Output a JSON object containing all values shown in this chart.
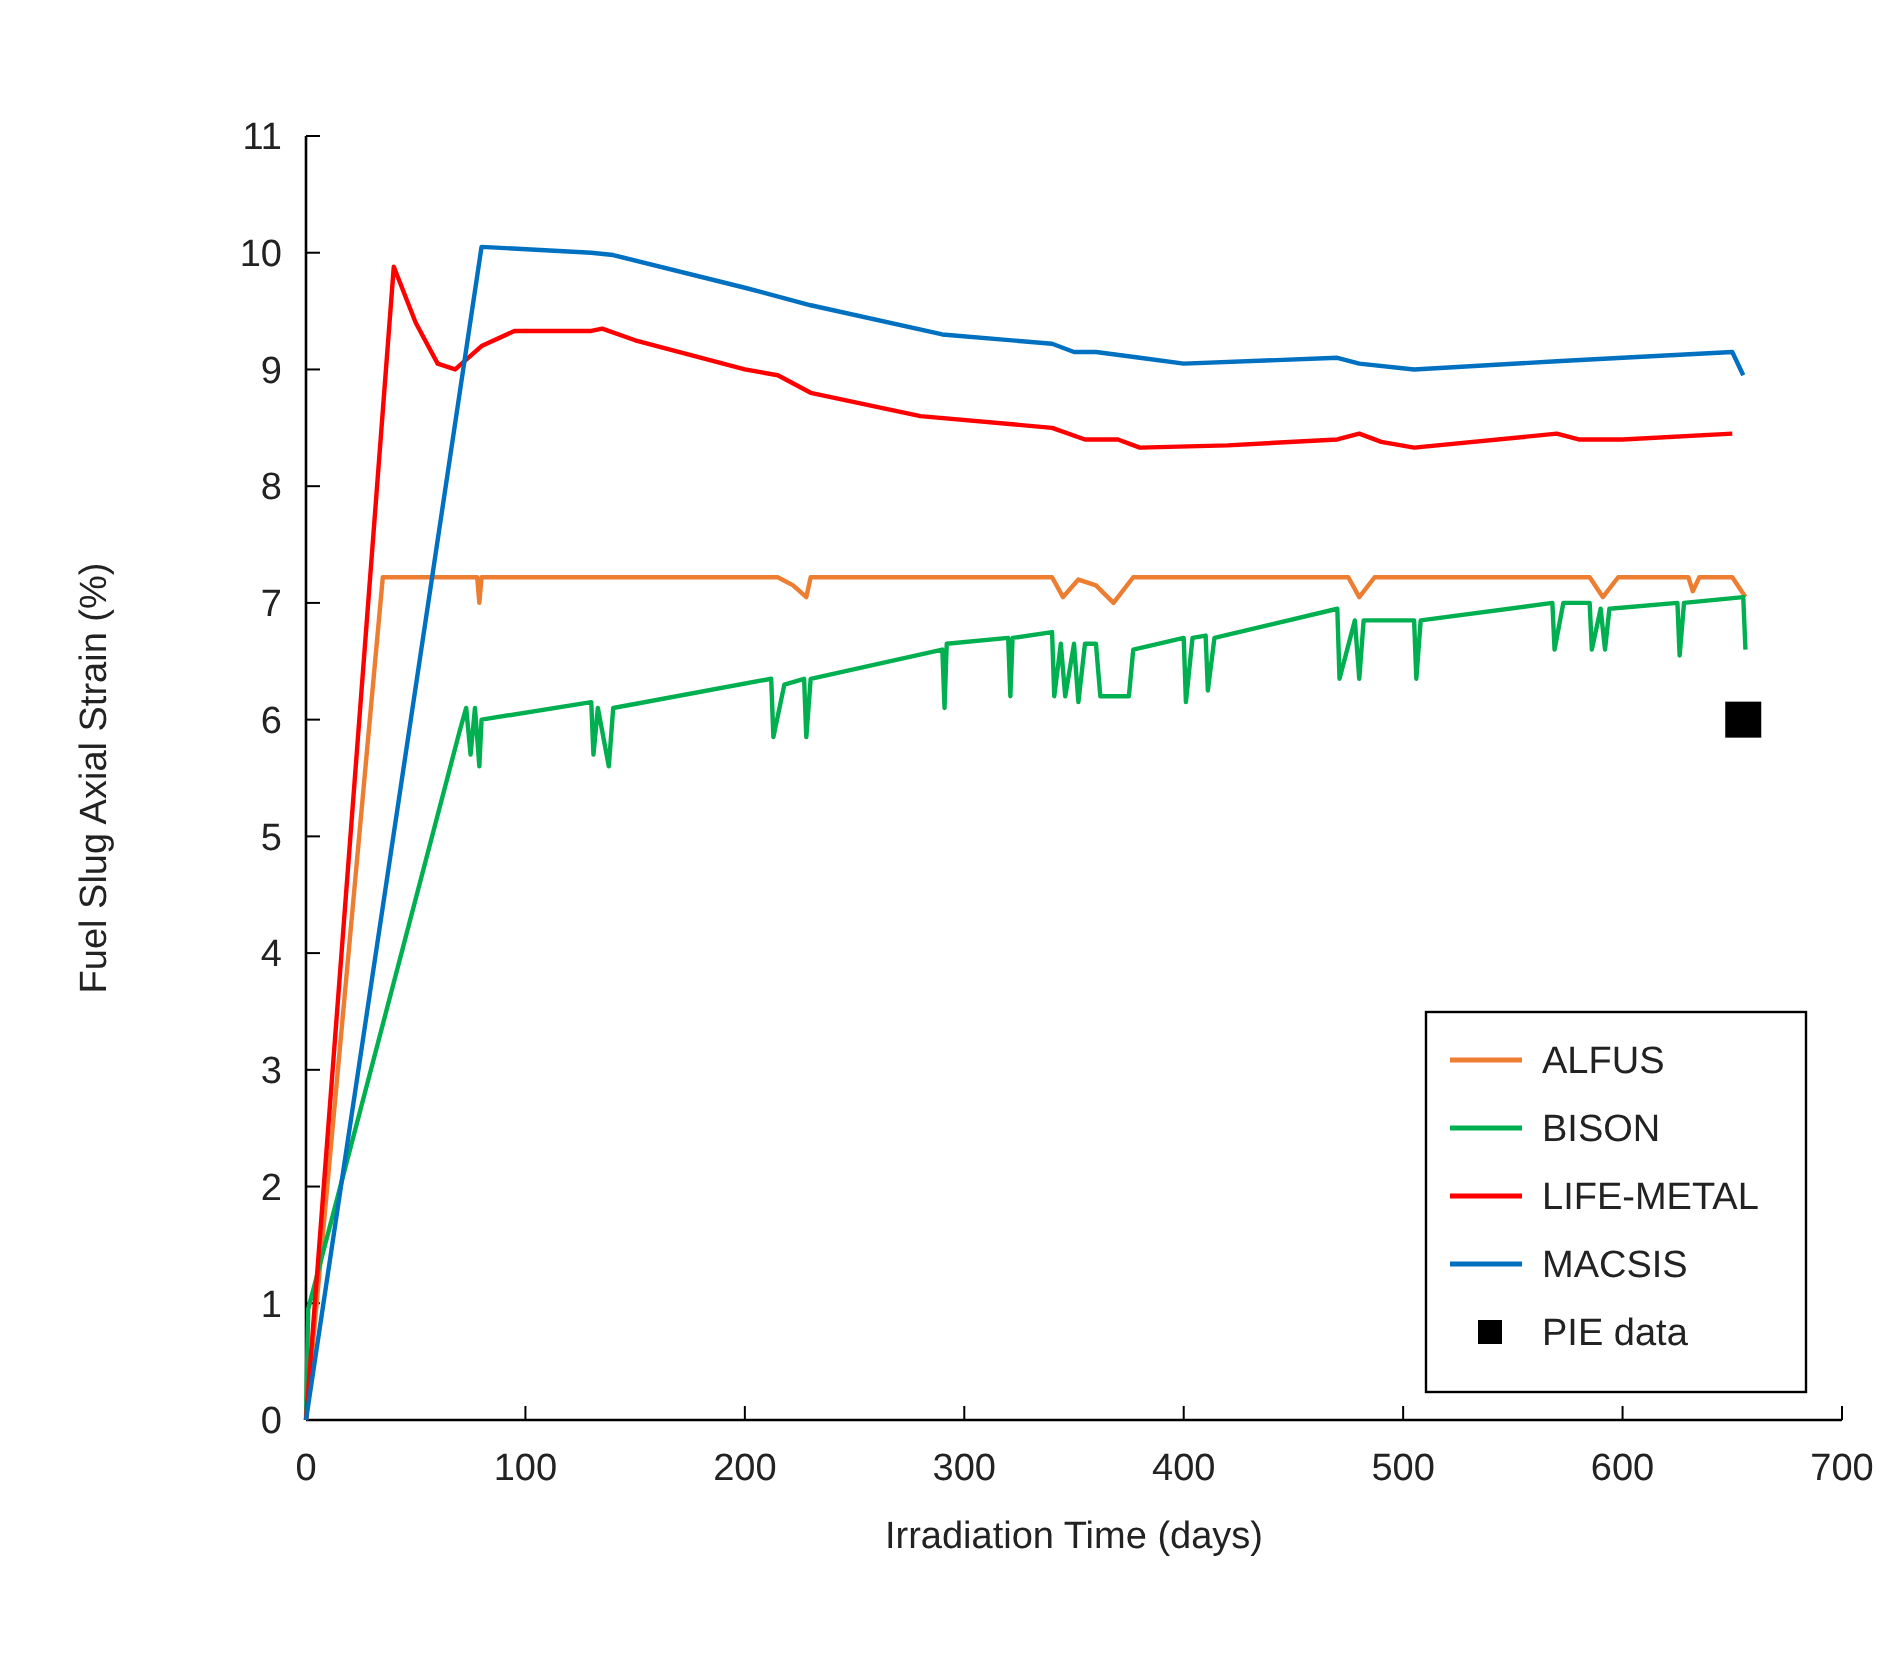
{
  "chart_data": {
    "type": "line",
    "xlabel": "Irradiation Time (days)",
    "ylabel": "Fuel Slug Axial Strain (%)",
    "xlim": [
      0,
      700
    ],
    "xticks": [
      0,
      100,
      200,
      300,
      400,
      500,
      600,
      700
    ],
    "ylim": [
      0,
      11
    ],
    "yticks": [
      0,
      1,
      2,
      3,
      4,
      5,
      6,
      7,
      8,
      9,
      10,
      11
    ],
    "grid": false,
    "legend": "bottom right",
    "series": [
      {
        "name": "ALFUS",
        "color": "#ed7d31",
        "marker": "none",
        "x": [
          0,
          35,
          78,
          79,
          80,
          215,
          222,
          228,
          230,
          340,
          345,
          352,
          360,
          368,
          377,
          475,
          480,
          487,
          585,
          591,
          598,
          630,
          632,
          635,
          650,
          656
        ],
        "values": [
          0,
          7.22,
          7.22,
          7.0,
          7.22,
          7.22,
          7.15,
          7.05,
          7.22,
          7.22,
          7.05,
          7.2,
          7.15,
          7.0,
          7.22,
          7.22,
          7.05,
          7.22,
          7.22,
          7.05,
          7.22,
          7.22,
          7.1,
          7.22,
          7.22,
          7.05
        ]
      },
      {
        "name": "BISON",
        "color": "#00b050",
        "marker": "none",
        "x": [
          0,
          1,
          70,
          73,
          75,
          77,
          79,
          80,
          130,
          131,
          133,
          138,
          140,
          212,
          213,
          218,
          227,
          228,
          230,
          290,
          291,
          292,
          320,
          321,
          322,
          340,
          341,
          344,
          346,
          350,
          352,
          355,
          360,
          362,
          375,
          377,
          400,
          401,
          404,
          410,
          411,
          414,
          470,
          471,
          478,
          480,
          482,
          505,
          506,
          508,
          568,
          569,
          573,
          585,
          586,
          590,
          592,
          594,
          625,
          626,
          628,
          655,
          656
        ],
        "values": [
          0,
          0.95,
          5.9,
          6.1,
          5.7,
          6.1,
          5.6,
          6.0,
          6.15,
          5.7,
          6.1,
          5.6,
          6.1,
          6.35,
          5.85,
          6.3,
          6.35,
          5.85,
          6.35,
          6.6,
          6.1,
          6.65,
          6.7,
          6.2,
          6.7,
          6.75,
          6.2,
          6.65,
          6.2,
          6.65,
          6.15,
          6.65,
          6.65,
          6.2,
          6.2,
          6.6,
          6.7,
          6.15,
          6.7,
          6.72,
          6.25,
          6.7,
          6.95,
          6.35,
          6.85,
          6.35,
          6.85,
          6.85,
          6.35,
          6.85,
          7.0,
          6.6,
          7.0,
          7.0,
          6.6,
          6.95,
          6.6,
          6.95,
          7.0,
          6.55,
          7.0,
          7.05,
          6.6
        ]
      },
      {
        "name": "LIFE-METAL",
        "color": "#ff0000",
        "marker": "none",
        "x": [
          0,
          40,
          50,
          60,
          68,
          80,
          95,
          130,
          135,
          150,
          200,
          215,
          230,
          280,
          340,
          355,
          370,
          380,
          420,
          470,
          480,
          490,
          505,
          570,
          580,
          600,
          650
        ],
        "values": [
          0,
          9.88,
          9.4,
          9.05,
          9.0,
          9.2,
          9.33,
          9.33,
          9.35,
          9.25,
          9.0,
          8.95,
          8.8,
          8.6,
          8.5,
          8.4,
          8.4,
          8.33,
          8.35,
          8.4,
          8.45,
          8.38,
          8.33,
          8.45,
          8.4,
          8.4,
          8.45
        ]
      },
      {
        "name": "MACSIS",
        "color": "#0070c0",
        "marker": "none",
        "x": [
          0,
          80,
          130,
          140,
          200,
          230,
          290,
          340,
          350,
          360,
          380,
          400,
          470,
          480,
          505,
          570,
          600,
          650,
          655
        ],
        "values": [
          0,
          10.05,
          10.0,
          9.98,
          9.7,
          9.55,
          9.3,
          9.22,
          9.15,
          9.15,
          9.1,
          9.05,
          9.1,
          9.05,
          9.0,
          9.07,
          9.1,
          9.15,
          8.95
        ]
      },
      {
        "name": "PIE data",
        "type": "scatter",
        "color": "#000000",
        "marker": "square",
        "x": [
          655
        ],
        "values": [
          6.0
        ]
      }
    ]
  }
}
